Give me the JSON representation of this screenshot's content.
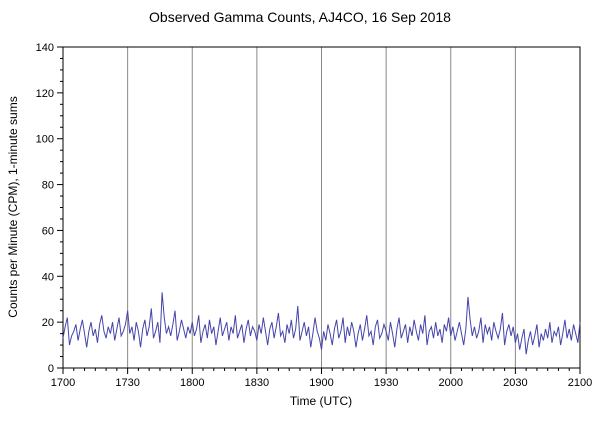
{
  "chart_data": {
    "type": "line",
    "title": "Observed Gamma Counts, AJ4CO, 16 Sep 2018",
    "xlabel": "Time (UTC)",
    "ylabel": "Counts per Minute (CPM), 1-minute sums",
    "x_tick_labels": [
      "1700",
      "1730",
      "1800",
      "1830",
      "1900",
      "1930",
      "2000",
      "2030",
      "2100"
    ],
    "x_range_minutes": [
      0,
      240
    ],
    "x_major_step_minutes": 30,
    "x_minor_step_minutes": 5,
    "ylim": [
      0,
      140
    ],
    "y_major_step": 20,
    "y_minor_step": 5,
    "grid": "vertical-majors",
    "legend": "none",
    "line_color": "#4444aa",
    "grid_color": "#888888",
    "frame_color": "#000000",
    "values": [
      13,
      18,
      22,
      10,
      14,
      16,
      19,
      12,
      17,
      21,
      15,
      9,
      16,
      20,
      14,
      17,
      11,
      19,
      23,
      16,
      13,
      18,
      15,
      20,
      12,
      17,
      22,
      14,
      16,
      19,
      25,
      15,
      18,
      12,
      20,
      16,
      9,
      17,
      21,
      14,
      18,
      26,
      13,
      16,
      20,
      11,
      33,
      22,
      15,
      18,
      14,
      19,
      25,
      12,
      16,
      21,
      17,
      13,
      18,
      15,
      20,
      14,
      17,
      23,
      11,
      16,
      19,
      13,
      21,
      15,
      18,
      10,
      16,
      22,
      14,
      17,
      20,
      12,
      18,
      15,
      23,
      13,
      16,
      19,
      11,
      17,
      21,
      14,
      18,
      16,
      12,
      19,
      15,
      22,
      16,
      10,
      17,
      20,
      13,
      18,
      24,
      14,
      16,
      11,
      19,
      15,
      21,
      13,
      17,
      27,
      12,
      16,
      20,
      14,
      18,
      9,
      15,
      22,
      16,
      13,
      8,
      16,
      12,
      19,
      15,
      10,
      17,
      21,
      13,
      16,
      22,
      11,
      18,
      14,
      20,
      16,
      9,
      15,
      19,
      12,
      17,
      23,
      14,
      16,
      10,
      18,
      21,
      13,
      15,
      19,
      16,
      12,
      20,
      15,
      9,
      17,
      22,
      13,
      16,
      19,
      11,
      18,
      14,
      21,
      16,
      12,
      19,
      15,
      23,
      10,
      16,
      18,
      13,
      20,
      14,
      17,
      11,
      19,
      16,
      22,
      14,
      18,
      12,
      16,
      20,
      15,
      10,
      17,
      31,
      21,
      14,
      18,
      13,
      16,
      22,
      11,
      19,
      15,
      18,
      12,
      20,
      16,
      13,
      17,
      24,
      10,
      16,
      19,
      14,
      18,
      11,
      15,
      8,
      13,
      17,
      6,
      12,
      16,
      10,
      14,
      19,
      9,
      15,
      12,
      17,
      13,
      20,
      11,
      16,
      14,
      18,
      10,
      15,
      21,
      13,
      17,
      12,
      19,
      15,
      11,
      20
    ]
  }
}
